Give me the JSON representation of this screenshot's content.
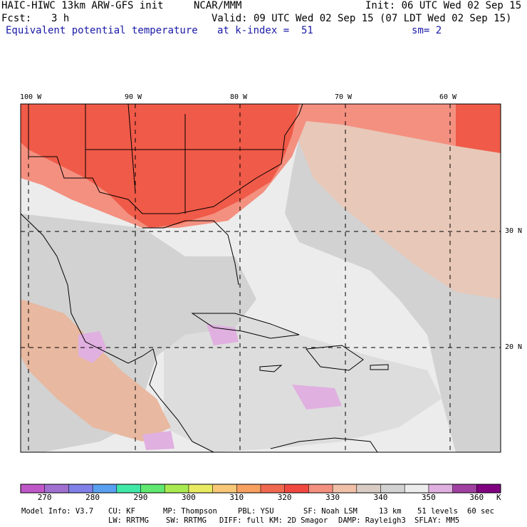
{
  "header": {
    "model": "HAIC-HIWC 13km ARW-GFS init",
    "org": "NCAR/MMM",
    "init": "Init: 06 UTC Wed 02 Sep 15",
    "fcst_label": "Fcst:",
    "fcst_value": "3 h",
    "valid": "Valid: 09 UTC Wed 02 Sep 15 (07 LDT Wed 02 Sep 15)",
    "field": "Equivalent potential temperature",
    "level": "at k-index =  51",
    "smooth": "sm= 2"
  },
  "map": {
    "longitude_labels": [
      "100 W",
      "90 W",
      "80 W",
      "70 W",
      "60 W"
    ],
    "latitude_labels": [
      "30 N",
      "20 N"
    ]
  },
  "colorbar": {
    "ticks": [
      "270",
      "280",
      "290",
      "300",
      "310",
      "320",
      "330",
      "340",
      "350",
      "360"
    ],
    "unit": "K",
    "colors": [
      "#c057c8",
      "#a070d0",
      "#8080e8",
      "#5aa0f0",
      "#40e8a8",
      "#60e870",
      "#a8ea50",
      "#e8ea60",
      "#f8c878",
      "#f8a060",
      "#f06850",
      "#f04840",
      "#f49080",
      "#f0c0a8",
      "#d8ccc4",
      "#d2d2d2",
      "#ececec",
      "#e0b0e0",
      "#a040a0",
      "#800080"
    ]
  },
  "footer": {
    "line1": [
      "Model Info: V3.7",
      "CU: KF",
      "MP: Thompson",
      "PBL: YSU",
      "SF: Noah LSM",
      "13 km",
      "51 levels",
      "60 sec"
    ],
    "line2": [
      "LW: RRTMG",
      "SW: RRTMG",
      "DIFF: full",
      "KM: 2D Smagor",
      "DAMP: Rayleigh3",
      "SFLAY: MM5"
    ]
  }
}
